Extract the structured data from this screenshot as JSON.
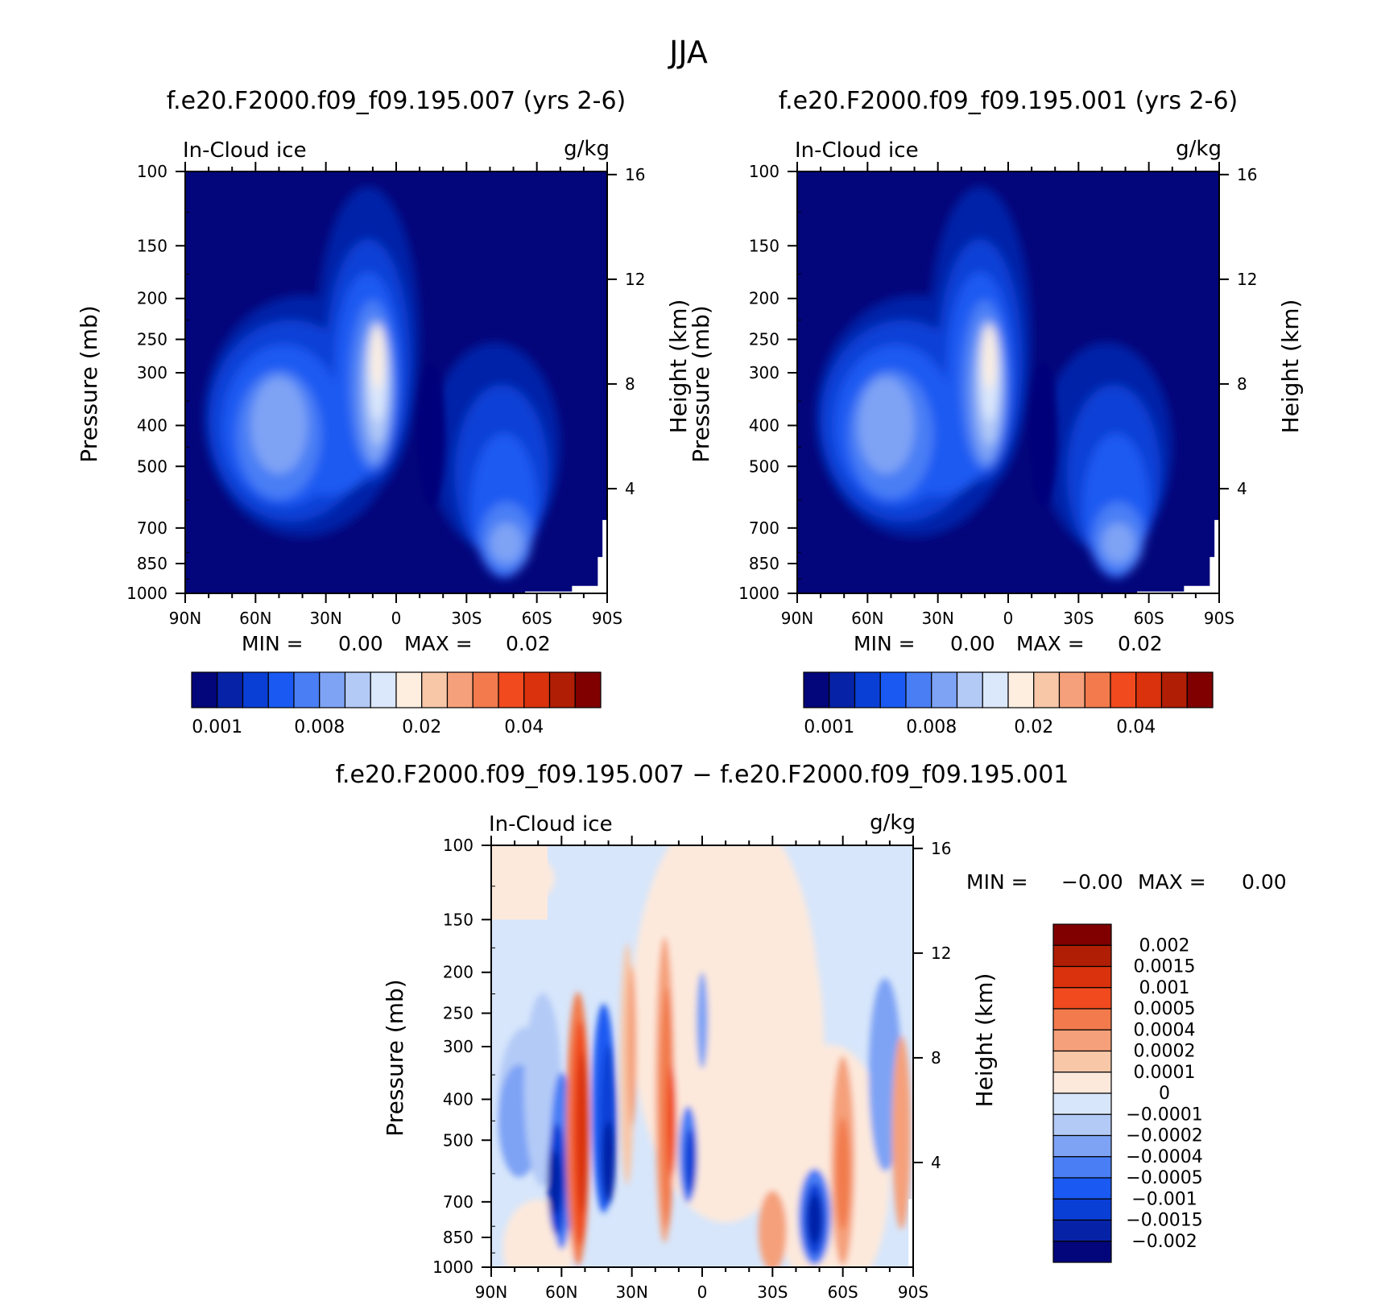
{
  "title": "JJA",
  "panels": [
    {
      "id": "p1",
      "title": "f.e20.F2000.f09_f09.195.007 (yrs 2-6)",
      "variable": "In-Cloud ice",
      "units": "g/kg",
      "stats": {
        "min_label": "MIN =",
        "min_value": "0.00",
        "max_label": "MAX =",
        "max_value": "0.02"
      }
    },
    {
      "id": "p2",
      "title": "f.e20.F2000.f09_f09.195.001 (yrs 2-6)",
      "variable": "In-Cloud ice",
      "units": "g/kg",
      "stats": {
        "min_label": "MIN =",
        "min_value": "0.00",
        "max_label": "MAX =",
        "max_value": "0.02"
      }
    },
    {
      "id": "p3",
      "title": "f.e20.F2000.f09_f09.195.007 − f.e20.F2000.f09_f09.195.001",
      "variable": "In-Cloud ice",
      "units": "g/kg",
      "stats": {
        "min_label": "MIN =",
        "min_value": "−0.00",
        "max_label": "MAX =",
        "max_value": "0.00"
      }
    }
  ],
  "chart_data": [
    {
      "type": "heatmap",
      "title": "f.e20.F2000.f09_f09.195.007 (yrs 2-6)",
      "variable": "In-Cloud ice",
      "units": "g/kg",
      "xlabel": "",
      "ylabel": "Pressure (mb)",
      "y2label": "Height (km)",
      "x_ticks": [
        "90N",
        "60N",
        "30N",
        "0",
        "30S",
        "60S",
        "90S"
      ],
      "y_ticks": [
        100,
        150,
        200,
        250,
        300,
        400,
        500,
        700,
        850,
        1000
      ],
      "y2_ticks": [
        16,
        12,
        8,
        4
      ],
      "ylim": [
        1000,
        100
      ],
      "y_scale": "log",
      "min": 0.0,
      "max": 0.02,
      "colorbar": {
        "labels": [
          "0.001",
          "0.008",
          "0.02",
          "0.04"
        ],
        "n_colors": 16,
        "orientation": "horizontal"
      },
      "features": [
        {
          "lat": 8,
          "p": 270,
          "level": 8,
          "desc": "maximum, upper tropical troposphere"
        },
        {
          "lat": 47,
          "p": 390,
          "level": 5,
          "desc": "midlatitude maximum"
        },
        {
          "lat": -47,
          "p": 760,
          "level": 5,
          "desc": "southern hemisphere low-level maximum"
        }
      ]
    },
    {
      "type": "heatmap",
      "title": "f.e20.F2000.f09_f09.195.001 (yrs 2-6)",
      "variable": "In-Cloud ice",
      "units": "g/kg",
      "xlabel": "",
      "ylabel": "Pressure (mb)",
      "y2label": "Height (km)",
      "x_ticks": [
        "90N",
        "60N",
        "30N",
        "0",
        "30S",
        "60S",
        "90S"
      ],
      "y_ticks": [
        100,
        150,
        200,
        250,
        300,
        400,
        500,
        700,
        850,
        1000
      ],
      "y2_ticks": [
        16,
        12,
        8,
        4
      ],
      "ylim": [
        1000,
        100
      ],
      "y_scale": "log",
      "min": 0.0,
      "max": 0.02,
      "colorbar": {
        "labels": [
          "0.001",
          "0.008",
          "0.02",
          "0.04"
        ],
        "n_colors": 16,
        "orientation": "horizontal"
      },
      "features": [
        {
          "lat": 8,
          "p": 280,
          "level": 8,
          "desc": "maximum, upper tropical troposphere"
        },
        {
          "lat": 50,
          "p": 370,
          "level": 5,
          "desc": "midlatitude maximum"
        },
        {
          "lat": -47,
          "p": 760,
          "level": 5,
          "desc": "southern hemisphere low-level maximum"
        }
      ]
    },
    {
      "type": "heatmap",
      "title": "f.e20.F2000.f09_f09.195.007 − f.e20.F2000.f09_f09.195.001",
      "variable": "In-Cloud ice",
      "units": "g/kg",
      "xlabel": "",
      "ylabel": "Pressure (mb)",
      "y2label": "Height (km)",
      "x_ticks": [
        "90N",
        "60N",
        "30N",
        "0",
        "30S",
        "60S",
        "90S"
      ],
      "y_ticks": [
        100,
        150,
        200,
        250,
        300,
        400,
        500,
        700,
        850,
        1000
      ],
      "y2_ticks": [
        16,
        12,
        8,
        4
      ],
      "ylim": [
        1000,
        100
      ],
      "y_scale": "log",
      "min": -0.0,
      "max": 0.0,
      "colorbar": {
        "labels": [
          "0.002",
          "0.0015",
          "0.001",
          "0.0005",
          "0.0004",
          "0.0002",
          "0.0001",
          "0",
          "−0.0001",
          "−0.0002",
          "−0.0004",
          "−0.0005",
          "−0.001",
          "−0.0015",
          "−0.002"
        ],
        "n_colors": 16,
        "orientation": "vertical"
      },
      "features": [
        {
          "lat": 52,
          "p": 480,
          "sign": "positive",
          "desc": "strong positive band"
        },
        {
          "lat": 63,
          "p": 560,
          "sign": "negative",
          "desc": "negative core"
        },
        {
          "lat": 40,
          "p": 450,
          "sign": "negative",
          "desc": "negative core"
        },
        {
          "lat": 15,
          "p": 330,
          "sign": "positive",
          "desc": "positive band"
        },
        {
          "lat": 5,
          "p": 520,
          "sign": "negative",
          "desc": "negative core"
        },
        {
          "lat": -48,
          "p": 760,
          "sign": "negative",
          "desc": "southern hemisphere negative core"
        }
      ]
    }
  ],
  "colors": {
    "seq": [
      "#03067a",
      "#0623a8",
      "#0a3fd6",
      "#1a5af2",
      "#4a7ef5",
      "#7ea3f5",
      "#b3caf7",
      "#dbe7fb",
      "#fdeee0",
      "#f8c7a8",
      "#f5a07a",
      "#f27a4c",
      "#f04a1e",
      "#d9320c",
      "#b01e05",
      "#800000"
    ],
    "div": [
      "#03067a",
      "#0623a8",
      "#0a3fd6",
      "#1a5af2",
      "#4a7ef5",
      "#7ea3f5",
      "#b3caf7",
      "#d7e6fb",
      "#fde9dc",
      "#f8c7a8",
      "#f5a07a",
      "#f27a4c",
      "#f04a1e",
      "#d9320c",
      "#b01e05",
      "#800000"
    ]
  }
}
